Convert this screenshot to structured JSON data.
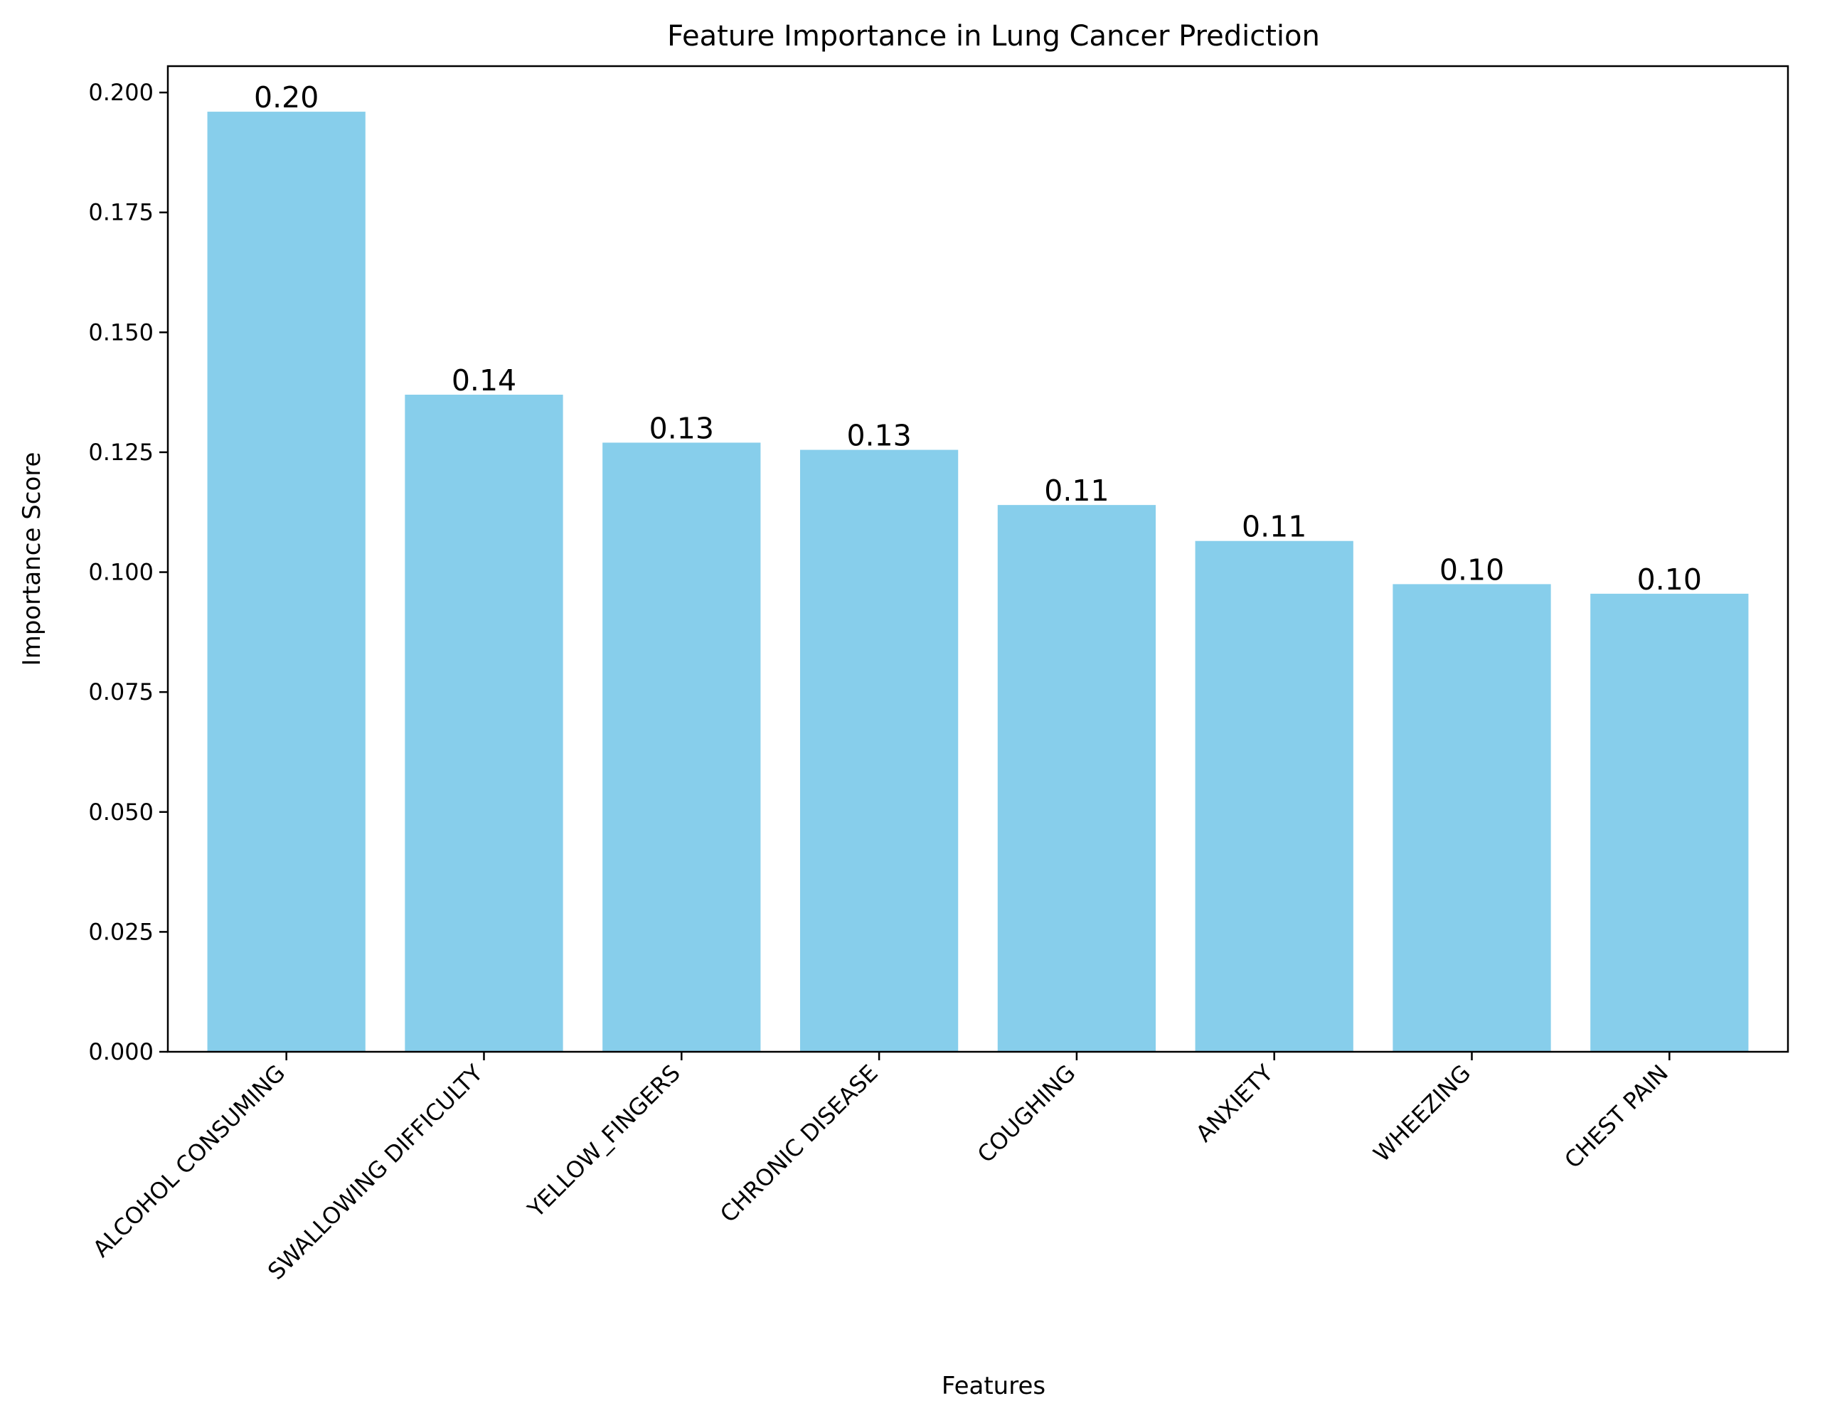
{
  "chart_data": {
    "type": "bar",
    "title": "Feature Importance in Lung Cancer Prediction",
    "xlabel": "Features",
    "ylabel": "Importance Score",
    "categories": [
      "ALCOHOL CONSUMING",
      "SWALLOWING DIFFICULTY",
      "YELLOW_FINGERS",
      "CHRONIC DISEASE",
      "COUGHING",
      "ANXIETY",
      "WHEEZING",
      "CHEST PAIN"
    ],
    "values": [
      0.196,
      0.137,
      0.127,
      0.1255,
      0.114,
      0.1065,
      0.0975,
      0.0955
    ],
    "data_labels": [
      "0.20",
      "0.14",
      "0.13",
      "0.13",
      "0.11",
      "0.11",
      "0.10",
      "0.10"
    ],
    "ylim": [
      0,
      0.2055
    ],
    "yticks": [
      0.0,
      0.025,
      0.05,
      0.075,
      0.1,
      0.125,
      0.15,
      0.175,
      0.2
    ],
    "ytick_labels": [
      "0.000",
      "0.025",
      "0.050",
      "0.075",
      "0.100",
      "0.125",
      "0.150",
      "0.175",
      "0.200"
    ],
    "bar_color": "#87CEEB",
    "grid": false,
    "legend": "none"
  }
}
